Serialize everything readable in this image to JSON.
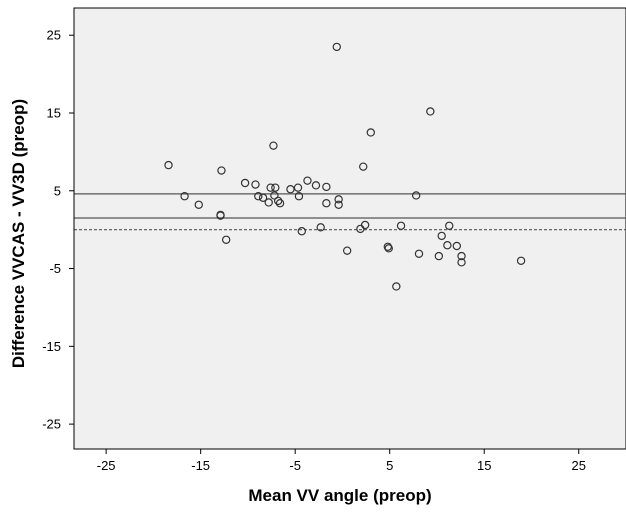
{
  "chart_data": {
    "type": "scatter",
    "title": "",
    "xlabel": "Mean VV angle (preop)",
    "ylabel": "Difference VVCAS - VV3D (preop)",
    "xlim": [
      -28.4,
      30
    ],
    "ylim": [
      -28.2,
      28.5
    ],
    "xticks": [
      -25,
      -15,
      -5,
      5,
      15,
      25
    ],
    "yticks": [
      25,
      15,
      5,
      -5,
      -15,
      -25
    ],
    "xtick_labels": [
      "-25",
      "-15",
      "-5",
      "5",
      "15",
      "25"
    ],
    "ytick_labels": [
      "25",
      "15",
      "5",
      "-5",
      "-15",
      "-25"
    ],
    "grid": false,
    "plot_background": "#f0f0f0",
    "reference_lines": [
      {
        "y": 4.6,
        "style": "solid"
      },
      {
        "y": 1.5,
        "style": "solid"
      },
      {
        "y": 0.0,
        "style": "dashed"
      }
    ],
    "points": [
      [
        -18.4,
        8.3
      ],
      [
        -16.7,
        4.3
      ],
      [
        -15.2,
        3.2
      ],
      [
        -12.8,
        7.6
      ],
      [
        -12.9,
        1.9
      ],
      [
        -12.9,
        1.8
      ],
      [
        -12.3,
        -1.3
      ],
      [
        -10.3,
        6.0
      ],
      [
        -9.2,
        5.8
      ],
      [
        -8.9,
        4.3
      ],
      [
        -8.4,
        4.1
      ],
      [
        -7.8,
        3.5
      ],
      [
        -7.6,
        5.4
      ],
      [
        -7.3,
        10.8
      ],
      [
        -7.2,
        4.4
      ],
      [
        -7.1,
        5.4
      ],
      [
        -6.8,
        3.7
      ],
      [
        -6.6,
        3.4
      ],
      [
        -5.5,
        5.2
      ],
      [
        -4.7,
        5.4
      ],
      [
        -4.6,
        4.3
      ],
      [
        -4.3,
        -0.2
      ],
      [
        -3.7,
        6.3
      ],
      [
        -2.8,
        5.7
      ],
      [
        -2.3,
        0.3
      ],
      [
        -1.7,
        5.5
      ],
      [
        -1.7,
        3.4
      ],
      [
        -0.6,
        23.5
      ],
      [
        -0.4,
        3.2
      ],
      [
        -0.4,
        3.9
      ],
      [
        0.5,
        -2.7
      ],
      [
        1.9,
        0.1
      ],
      [
        2.2,
        8.1
      ],
      [
        2.4,
        0.6
      ],
      [
        3.0,
        12.5
      ],
      [
        4.8,
        -2.2
      ],
      [
        4.9,
        -2.4
      ],
      [
        5.7,
        -7.3
      ],
      [
        6.2,
        0.5
      ],
      [
        7.8,
        4.4
      ],
      [
        8.1,
        -3.1
      ],
      [
        9.3,
        15.2
      ],
      [
        10.2,
        -3.4
      ],
      [
        10.5,
        -0.8
      ],
      [
        11.1,
        -2.0
      ],
      [
        11.3,
        0.5
      ],
      [
        12.1,
        -2.1
      ],
      [
        12.6,
        -3.4
      ],
      [
        12.6,
        -4.2
      ],
      [
        18.9,
        -4.0
      ]
    ]
  }
}
